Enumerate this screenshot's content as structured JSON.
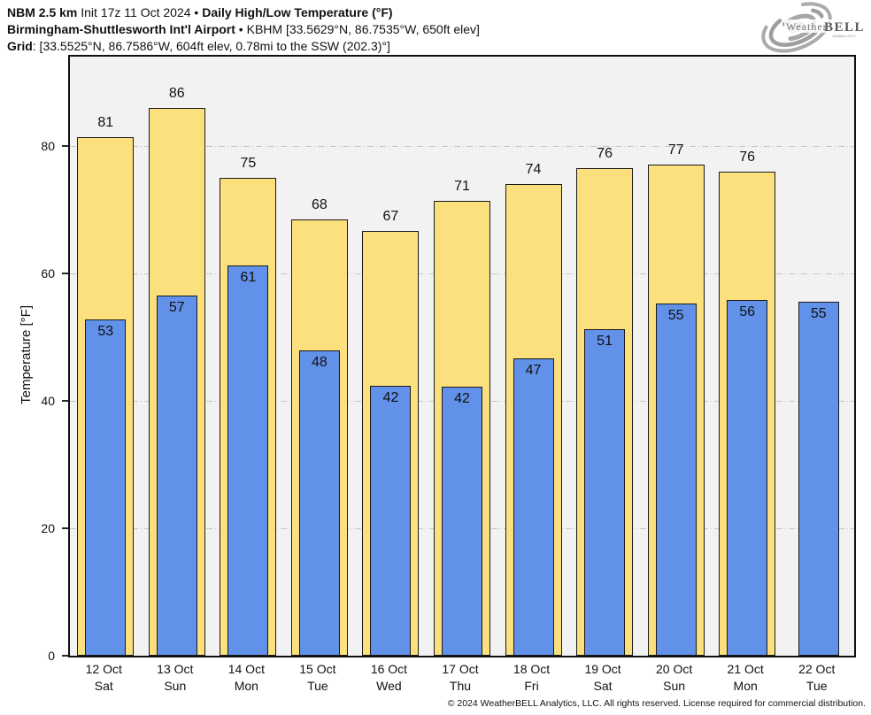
{
  "header": {
    "line1_bold1": "NBM 2.5 km",
    "line1_normal": " Init 17z 11 Oct 2024 • ",
    "line1_bold2": "Daily High/Low Temperature (°F)",
    "line2_bold": "Birmingham-Shuttlesworth Int'l Airport",
    "line2_normal": " • KBHM [33.5629°N, 86.7535°W, 650ft elev]",
    "line3_bold": "Grid",
    "line3_normal": ": [33.5525°N, 86.7586°W, 604ft elev, 0.78mi to the SSW (202.3)°]"
  },
  "logo": {
    "brand_weather": "Weather",
    "brand_bell": "BELL",
    "sub": "Analytics LLC"
  },
  "chart_data": {
    "type": "bar",
    "subtype": "overlaid high/low bars per day",
    "title": "Daily High/Low Temperature (°F)",
    "ylabel": "Temperature [°F]",
    "yticks": [
      0,
      20,
      40,
      60,
      80
    ],
    "ylim": [
      0,
      94
    ],
    "grid": "dashed horizontal gridlines at 20/40/60/80, light gray, plot background #f2f2f2",
    "legend_position": "none",
    "categories": [
      {
        "date": "12 Oct",
        "weekday": "Sat"
      },
      {
        "date": "13 Oct",
        "weekday": "Sun"
      },
      {
        "date": "14 Oct",
        "weekday": "Mon"
      },
      {
        "date": "15 Oct",
        "weekday": "Tue"
      },
      {
        "date": "16 Oct",
        "weekday": "Wed"
      },
      {
        "date": "17 Oct",
        "weekday": "Thu"
      },
      {
        "date": "18 Oct",
        "weekday": "Fri"
      },
      {
        "date": "19 Oct",
        "weekday": "Sat"
      },
      {
        "date": "20 Oct",
        "weekday": "Sun"
      },
      {
        "date": "21 Oct",
        "weekday": "Mon"
      },
      {
        "date": "22 Oct",
        "weekday": "Tue"
      }
    ],
    "series": [
      {
        "name": "High",
        "color": "#FBE07D",
        "values": [
          81,
          86,
          75,
          68,
          67,
          71,
          74,
          76,
          77,
          76,
          null
        ],
        "draw_values": [
          81.4,
          86.0,
          75.0,
          68.4,
          66.7,
          71.4,
          74.0,
          76.5,
          77.1,
          75.9,
          null
        ]
      },
      {
        "name": "Low",
        "color": "#6191E8",
        "values": [
          53,
          57,
          61,
          48,
          42,
          42,
          47,
          51,
          55,
          56,
          55
        ],
        "draw_values": [
          52.7,
          56.5,
          61.2,
          47.9,
          42.3,
          42.2,
          46.6,
          51.2,
          55.2,
          55.8,
          55.6
        ]
      }
    ]
  },
  "footer": {
    "copyright": "© 2024 WeatherBELL Analytics, LLC. All rights reserved. License required for commercial distribution."
  }
}
